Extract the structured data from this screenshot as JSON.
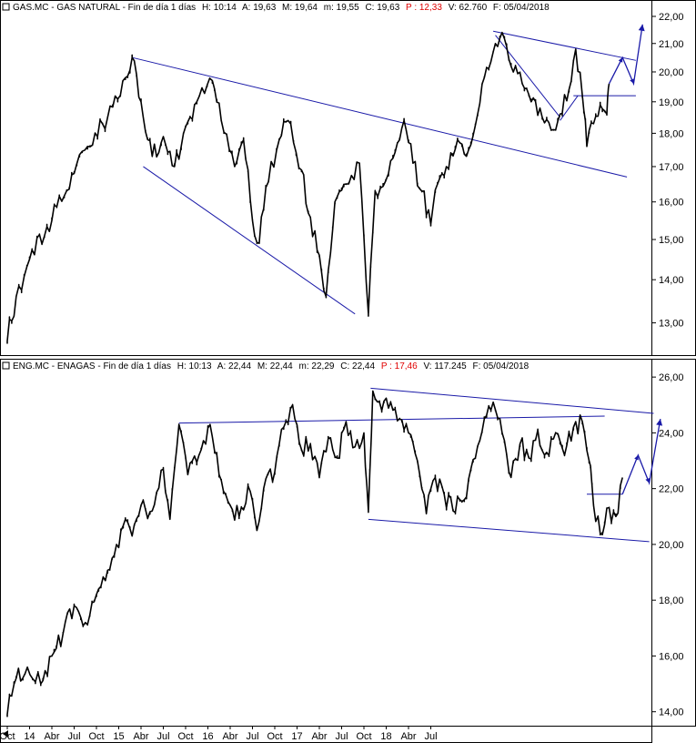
{
  "top_panel": {
    "header": {
      "symbol": "GAS.MC - GAS NATURAL - Fin de día 1 días",
      "high": "H: 10:14",
      "a": "A: 19,63",
      "m_upper": "M: 19,64",
      "m_lower": "m: 19,55",
      "c": "C: 19,63",
      "p": "P : 12,33",
      "v": "V: 62.760",
      "f": "F: 05/04/2018"
    }
  },
  "bottom_panel": {
    "header": {
      "symbol": "ENG.MC - ENAGAS - Fin de día 1 días",
      "high": "H: 10:13",
      "a": "A: 22,44",
      "m_upper": "M: 22,44",
      "m_lower": "m: 22,29",
      "c": "C: 22,44",
      "p": "P : 17,46",
      "v": "V: 117.245",
      "f": "F: 05/04/2018"
    }
  },
  "x_axis_labels": [
    "Oct",
    "14",
    "Abr",
    "Jul",
    "Oct",
    "15",
    "Abr",
    "Jul",
    "Oct",
    "16",
    "Abr",
    "Jul",
    "Oct",
    "17",
    "Abr",
    "Jul",
    "Oct",
    "18",
    "Abr",
    "Jul"
  ],
  "colors": {
    "price": "#000000",
    "trendline": "#1a1aa8",
    "header_highlight": "#e00000"
  },
  "chart_data": [
    {
      "type": "line",
      "scale": "log",
      "ylim": [
        12.3,
        22
      ],
      "yticks": [
        "13,00",
        "14,00",
        "15,00",
        "16,00",
        "17,00",
        "18,00",
        "19,00",
        "20,00",
        "21,00",
        "22,00"
      ],
      "series": [
        {
          "values": [
            [
              0,
              12.6
            ],
            [
              0.4,
              13.6
            ],
            [
              1,
              14.5
            ],
            [
              2,
              15.5
            ],
            [
              3,
              16.8
            ],
            [
              3.6,
              17.6
            ],
            [
              4.5,
              18.5
            ],
            [
              5.3,
              19.8
            ],
            [
              5.6,
              20.5
            ],
            [
              6.0,
              19.0
            ],
            [
              6.5,
              17.3
            ],
            [
              7.0,
              17.9
            ],
            [
              7.5,
              17.0
            ],
            [
              8.0,
              18.2
            ],
            [
              8.5,
              19.0
            ],
            [
              9.2,
              19.7
            ],
            [
              9.6,
              18.4
            ],
            [
              10.2,
              17.0
            ],
            [
              10.6,
              17.8
            ],
            [
              11.0,
              15.5
            ],
            [
              11.3,
              14.9
            ],
            [
              11.6,
              16.4
            ],
            [
              12.2,
              17.8
            ],
            [
              12.6,
              18.4
            ],
            [
              13.2,
              16.9
            ],
            [
              13.5,
              15.7
            ],
            [
              14.0,
              14.6
            ],
            [
              14.3,
              13.6
            ],
            [
              14.7,
              16.0
            ],
            [
              15.2,
              16.5
            ],
            [
              15.8,
              17.1
            ],
            [
              16.2,
              13.2
            ],
            [
              16.5,
              16.3
            ],
            [
              17.1,
              16.8
            ],
            [
              17.5,
              17.7
            ],
            [
              17.8,
              18.4
            ],
            [
              18.2,
              17.1
            ],
            [
              18.6,
              16.3
            ],
            [
              19.0,
              15.4
            ],
            [
              19.3,
              16.5
            ],
            [
              19.7,
              17.0
            ],
            [
              20.2,
              17.8
            ],
            [
              20.7,
              17.5
            ],
            [
              21.1,
              18.6
            ],
            [
              21.4,
              19.8
            ],
            [
              21.9,
              21.0
            ],
            [
              22.2,
              21.4
            ],
            [
              22.6,
              20.2
            ],
            [
              23.1,
              19.6
            ],
            [
              23.5,
              19.0
            ],
            [
              24.0,
              18.5
            ],
            [
              24.4,
              18.1
            ],
            [
              24.8,
              18.6
            ],
            [
              25.2,
              19.4
            ],
            [
              25.5,
              20.8
            ],
            [
              25.8,
              19.2
            ],
            [
              26.0,
              17.6
            ],
            [
              26.3,
              18.3
            ],
            [
              26.6,
              18.9
            ],
            [
              26.9,
              18.6
            ],
            [
              27.0,
              19.6
            ]
          ]
        }
      ],
      "trendlines": [
        {
          "from": [
            5.6,
            20.5
          ],
          "to": [
            27.8,
            16.7
          ]
        },
        {
          "from": [
            6.1,
            17.0
          ],
          "to": [
            15.6,
            13.2
          ]
        },
        {
          "from": [
            21.8,
            21.45
          ],
          "to": [
            28.2,
            20.4
          ]
        },
        {
          "from": [
            21.9,
            21.3
          ],
          "to": [
            24.8,
            18.5
          ]
        },
        {
          "from": [
            24.8,
            18.4
          ],
          "to": [
            25.6,
            19.2
          ]
        },
        {
          "from": [
            25.4,
            19.2
          ],
          "to": [
            28.2,
            19.2
          ]
        }
      ],
      "projection": [
        [
          27.0,
          19.6
        ],
        [
          27.6,
          20.5
        ],
        [
          28.1,
          19.6
        ],
        [
          28.5,
          21.7
        ]
      ]
    },
    {
      "type": "line",
      "ylim": [
        13.5,
        26.2
      ],
      "yticks": [
        "14,00",
        "16,00",
        "18,00",
        "20,00",
        "22,00",
        "24,00",
        "26,00"
      ],
      "series": [
        {
          "values": [
            [
              0,
              13.9
            ],
            [
              0.4,
              15.2
            ],
            [
              0.9,
              15.6
            ],
            [
              1.5,
              15.0
            ],
            [
              2.0,
              16.0
            ],
            [
              2.5,
              16.8
            ],
            [
              3.0,
              17.8
            ],
            [
              3.5,
              17.2
            ],
            [
              4.0,
              18.2
            ],
            [
              4.4,
              18.7
            ],
            [
              4.9,
              20.0
            ],
            [
              5.3,
              20.9
            ],
            [
              5.6,
              20.3
            ],
            [
              6.0,
              21.4
            ],
            [
              6.5,
              21.2
            ],
            [
              7.0,
              22.7
            ],
            [
              7.3,
              20.9
            ],
            [
              7.7,
              24.3
            ],
            [
              8.1,
              22.5
            ],
            [
              8.6,
              23.2
            ],
            [
              9.1,
              24.3
            ],
            [
              9.5,
              22.5
            ],
            [
              10.0,
              21.4
            ],
            [
              10.4,
              21.0
            ],
            [
              10.8,
              22.1
            ],
            [
              11.2,
              20.5
            ],
            [
              11.5,
              22.0
            ],
            [
              12.0,
              22.6
            ],
            [
              12.4,
              24.2
            ],
            [
              12.8,
              25.0
            ],
            [
              13.2,
              23.4
            ],
            [
              13.6,
              23.6
            ],
            [
              14.0,
              22.4
            ],
            [
              14.4,
              23.8
            ],
            [
              14.8,
              23.1
            ],
            [
              15.2,
              24.4
            ],
            [
              15.6,
              23.5
            ],
            [
              16.0,
              24.0
            ],
            [
              16.2,
              21.2
            ],
            [
              16.4,
              25.5
            ],
            [
              16.8,
              24.8
            ],
            [
              17.2,
              25.1
            ],
            [
              17.6,
              24.5
            ],
            [
              18.0,
              24.0
            ],
            [
              18.4,
              23.0
            ],
            [
              18.8,
              21.1
            ],
            [
              19.2,
              22.4
            ],
            [
              19.6,
              21.8
            ],
            [
              20.0,
              21.2
            ],
            [
              20.5,
              21.6
            ],
            [
              21.0,
              23.1
            ],
            [
              21.4,
              24.5
            ],
            [
              21.8,
              25.1
            ],
            [
              22.2,
              24.0
            ],
            [
              22.6,
              22.4
            ],
            [
              23.0,
              23.6
            ],
            [
              23.4,
              23.1
            ],
            [
              23.8,
              24.1
            ],
            [
              24.2,
              23.3
            ],
            [
              24.6,
              24.0
            ],
            [
              25.0,
              23.2
            ],
            [
              25.4,
              24.2
            ],
            [
              25.8,
              24.4
            ],
            [
              26.1,
              23.0
            ],
            [
              26.3,
              21.4
            ],
            [
              26.6,
              20.4
            ],
            [
              26.9,
              21.3
            ],
            [
              27.3,
              21.0
            ],
            [
              27.6,
              22.4
            ]
          ]
        }
      ],
      "trendlines": [
        {
          "from": [
            7.7,
            24.35
          ],
          "to": [
            26.8,
            24.6
          ]
        },
        {
          "from": [
            16.3,
            25.6
          ],
          "to": [
            29.0,
            24.7
          ]
        },
        {
          "from": [
            16.2,
            20.9
          ],
          "to": [
            28.8,
            20.1
          ]
        },
        {
          "from": [
            26.0,
            21.8
          ],
          "to": [
            27.6,
            21.8
          ]
        }
      ],
      "projection": [
        [
          27.6,
          21.8
        ],
        [
          28.3,
          23.2
        ],
        [
          28.8,
          22.2
        ],
        [
          29.3,
          24.5
        ]
      ]
    }
  ]
}
